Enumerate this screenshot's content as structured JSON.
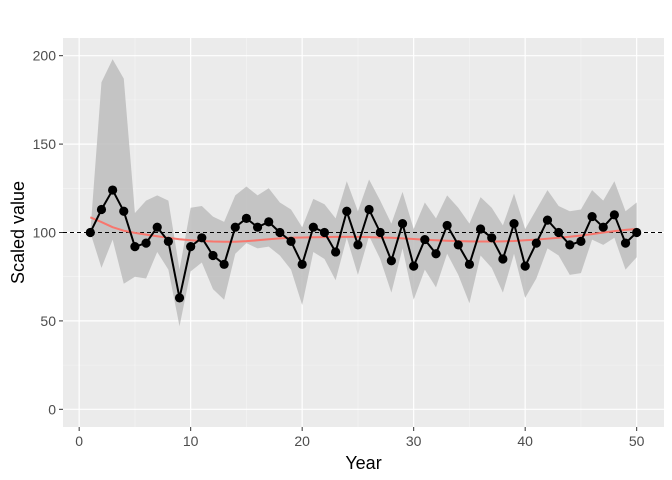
{
  "chart_data": {
    "type": "line",
    "title": "",
    "xlabel": "Year",
    "ylabel": "Scaled value",
    "xlim": [
      -1.45,
      52.45
    ],
    "ylim": [
      -10,
      210
    ],
    "xticks": [
      0,
      10,
      20,
      30,
      40,
      50
    ],
    "xtick_labels": [
      "0",
      "10",
      "20",
      "30",
      "40",
      "50"
    ],
    "yticks": [
      0,
      50,
      100,
      150,
      200
    ],
    "ytick_labels": [
      "0",
      "50",
      "100",
      "150",
      "200"
    ],
    "grid": true,
    "reference_line": {
      "y": 100,
      "style": "dashed",
      "color": "#000000"
    },
    "x": [
      1,
      2,
      3,
      4,
      5,
      6,
      7,
      8,
      9,
      10,
      11,
      12,
      13,
      14,
      15,
      16,
      17,
      18,
      19,
      20,
      21,
      22,
      23,
      24,
      25,
      26,
      27,
      28,
      29,
      30,
      31,
      32,
      33,
      34,
      35,
      36,
      37,
      38,
      39,
      40,
      41,
      42,
      43,
      44,
      45,
      46,
      47,
      48,
      49,
      50
    ],
    "series": [
      {
        "values": [
          100,
          113,
          124,
          112,
          92,
          94,
          103,
          95,
          63,
          92,
          97,
          87,
          82,
          103,
          108,
          103,
          106,
          100,
          95,
          82,
          103,
          100,
          89,
          112,
          93,
          113,
          100,
          84,
          105,
          81,
          96,
          88,
          104,
          93,
          82,
          102,
          97,
          85,
          105,
          81,
          94,
          107,
          100,
          93,
          95,
          109,
          103,
          110,
          94,
          100
        ],
        "color": "#000000",
        "style": "line+points"
      },
      {
        "values": [
          108.6,
          105.9,
          103.0,
          101.0,
          99.8,
          98.8,
          97.9,
          97.0,
          96.2,
          95.6,
          95.2,
          94.9,
          94.8,
          94.8,
          95.1,
          95.6,
          96.2,
          96.7,
          97.0,
          97.2,
          97.3,
          97.4,
          97.5,
          97.5,
          97.5,
          97.4,
          97.2,
          97.0,
          96.7,
          96.3,
          95.9,
          95.6,
          95.3,
          95.1,
          95.0,
          94.9,
          94.9,
          95.0,
          95.2,
          95.6,
          96.0,
          96.5,
          97.0,
          97.6,
          98.3,
          99.1,
          100.0,
          100.8,
          101.5,
          102.0
        ],
        "color": "#F8766D",
        "style": "smooth"
      }
    ],
    "band": {
      "color": "#bdbdbd",
      "upper": [
        100,
        185,
        198,
        187,
        111,
        118,
        121,
        118,
        79,
        114,
        115,
        109,
        106,
        121,
        126,
        121,
        125,
        117,
        113,
        103,
        119,
        116,
        108,
        129,
        112,
        130,
        118,
        105,
        123,
        102,
        117,
        108,
        121,
        114,
        105,
        120,
        114,
        104,
        122,
        102,
        113,
        124,
        115,
        112,
        113,
        124,
        118,
        129,
        112,
        117
      ],
      "lower": [
        100,
        80,
        96,
        71,
        75,
        74,
        89,
        79,
        47,
        78,
        83,
        68,
        62,
        88,
        94,
        91,
        92,
        87,
        79,
        59,
        89,
        85,
        73,
        97,
        76,
        98,
        85,
        66,
        91,
        62,
        79,
        69,
        88,
        76,
        60,
        87,
        80,
        66,
        88,
        63,
        74,
        91,
        87,
        76,
        77,
        96,
        93,
        97,
        79,
        86
      ]
    }
  }
}
